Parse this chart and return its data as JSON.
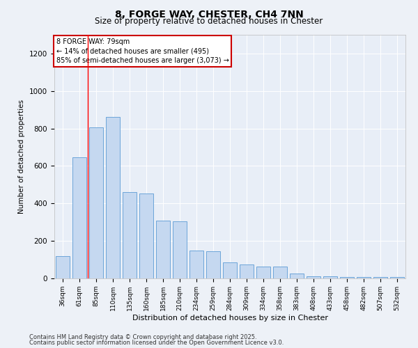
{
  "title_line1": "8, FORGE WAY, CHESTER, CH4 7NN",
  "title_line2": "Size of property relative to detached houses in Chester",
  "xlabel": "Distribution of detached houses by size in Chester",
  "ylabel": "Number of detached properties",
  "categories": [
    "36sqm",
    "61sqm",
    "85sqm",
    "110sqm",
    "135sqm",
    "160sqm",
    "185sqm",
    "210sqm",
    "234sqm",
    "259sqm",
    "284sqm",
    "309sqm",
    "334sqm",
    "358sqm",
    "383sqm",
    "408sqm",
    "433sqm",
    "458sqm",
    "482sqm",
    "507sqm",
    "532sqm"
  ],
  "values": [
    120,
    645,
    805,
    860,
    460,
    455,
    310,
    305,
    150,
    145,
    85,
    75,
    65,
    65,
    25,
    12,
    12,
    8,
    6,
    6,
    6
  ],
  "bar_color": "#c5d8f0",
  "bar_edge_color": "#5b9bd5",
  "red_line_x": 1.5,
  "ylim": [
    0,
    1300
  ],
  "yticks": [
    0,
    200,
    400,
    600,
    800,
    1000,
    1200
  ],
  "annotation_text": "8 FORGE WAY: 79sqm\n← 14% of detached houses are smaller (495)\n85% of semi-detached houses are larger (3,073) →",
  "annotation_box_color": "#ffffff",
  "annotation_box_edge_color": "#cc0000",
  "bg_color": "#e8eef7",
  "fig_bg_color": "#edf1f7",
  "footer_line1": "Contains HM Land Registry data © Crown copyright and database right 2025.",
  "footer_line2": "Contains public sector information licensed under the Open Government Licence v3.0."
}
